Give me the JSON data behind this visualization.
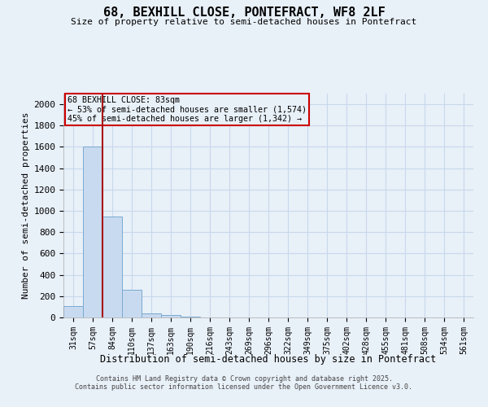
{
  "title_line1": "68, BEXHILL CLOSE, PONTEFRACT, WF8 2LF",
  "title_line2": "Size of property relative to semi-detached houses in Pontefract",
  "xlabel": "Distribution of semi-detached houses by size in Pontefract",
  "ylabel": "Number of semi-detached properties",
  "categories": [
    "31sqm",
    "57sqm",
    "84sqm",
    "110sqm",
    "137sqm",
    "163sqm",
    "190sqm",
    "216sqm",
    "243sqm",
    "269sqm",
    "296sqm",
    "322sqm",
    "349sqm",
    "375sqm",
    "402sqm",
    "428sqm",
    "455sqm",
    "481sqm",
    "508sqm",
    "534sqm",
    "561sqm"
  ],
  "values": [
    110,
    1600,
    950,
    260,
    35,
    25,
    10,
    3,
    2,
    1,
    1,
    0,
    0,
    0,
    0,
    0,
    0,
    0,
    0,
    0,
    0
  ],
  "bar_color": "#c8daf0",
  "bar_edge_color": "#7aaad0",
  "grid_color": "#c8d8ec",
  "vline_x": 2.0,
  "vline_color": "#aa1111",
  "annotation_box_color": "#cc0000",
  "annotation_title": "68 BEXHILL CLOSE: 83sqm",
  "annotation_line1": "← 53% of semi-detached houses are smaller (1,574)",
  "annotation_line2": "45% of semi-detached houses are larger (1,342) →",
  "ylim": [
    0,
    2100
  ],
  "yticks": [
    0,
    200,
    400,
    600,
    800,
    1000,
    1200,
    1400,
    1600,
    1800,
    2000
  ],
  "copyright_line1": "Contains HM Land Registry data © Crown copyright and database right 2025.",
  "copyright_line2": "Contains public sector information licensed under the Open Government Licence v3.0.",
  "bg_color": "#e8f0f8"
}
